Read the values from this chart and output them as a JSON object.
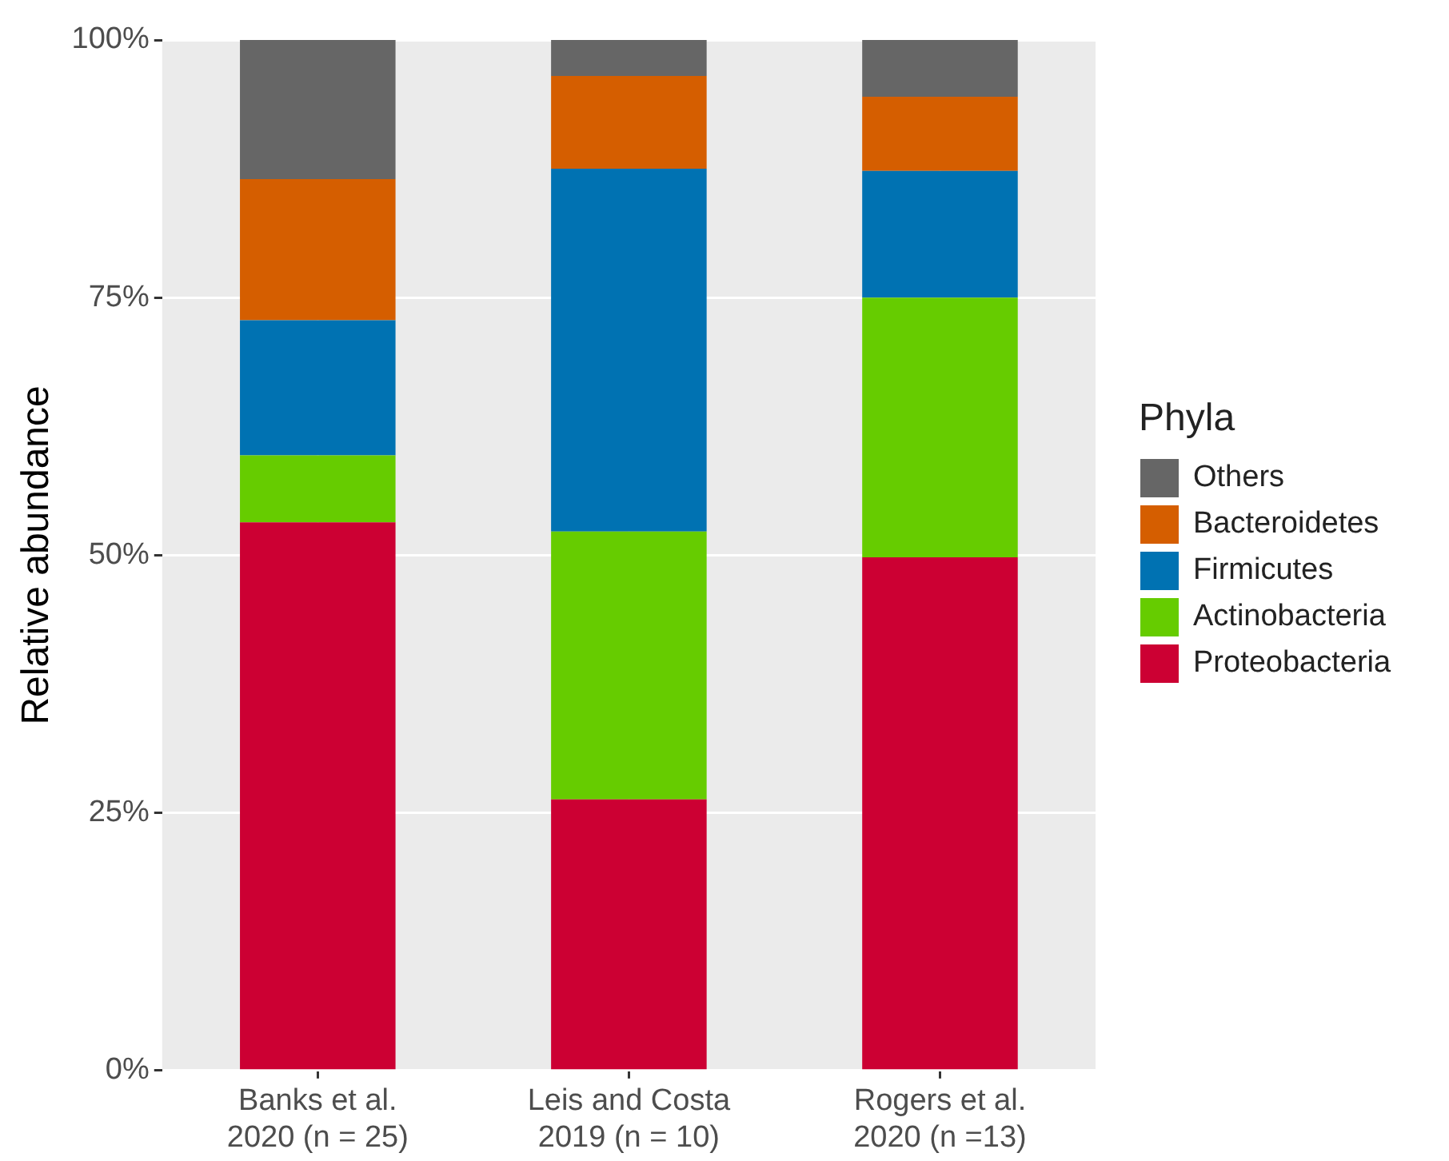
{
  "chart_data": {
    "type": "bar",
    "stacked": true,
    "ylabel": "Relative abundance",
    "legend_title": "Phyla",
    "legend": "right",
    "grid": true,
    "categories": [
      "Banks et al.\n2020 (n = 25)",
      "Leis and Costa\n2019 (n = 10)",
      "Rogers et al.\n2020 (n =13)"
    ],
    "ylim": [
      0,
      100
    ],
    "yticks": [
      {
        "value": 0,
        "label": "0%"
      },
      {
        "value": 25,
        "label": "25%"
      },
      {
        "value": 50,
        "label": "50%"
      },
      {
        "value": 75,
        "label": "75%"
      },
      {
        "value": 100,
        "label": "100%"
      }
    ],
    "series": [
      {
        "name": "Proteobacteria",
        "color": "#cc0033",
        "values": [
          53.2,
          26.3,
          49.8
        ]
      },
      {
        "name": "Actinobacteria",
        "color": "#66cc00",
        "values": [
          6.5,
          26.0,
          25.2
        ]
      },
      {
        "name": "Firmicutes",
        "color": "#0072b2",
        "values": [
          13.1,
          35.2,
          12.3
        ]
      },
      {
        "name": "Bacteroidetes",
        "color": "#d55e00",
        "values": [
          13.7,
          9.0,
          7.2
        ]
      },
      {
        "name": "Others",
        "color": "#666666",
        "values": [
          13.5,
          3.5,
          5.5
        ]
      }
    ]
  }
}
